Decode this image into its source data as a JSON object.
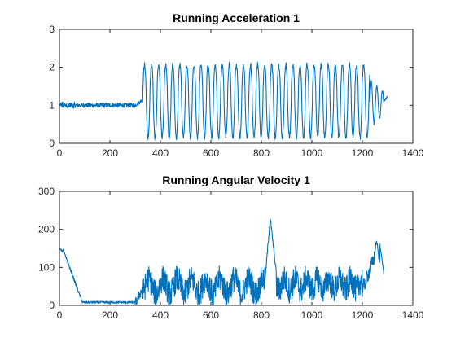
{
  "chart_data": [
    {
      "type": "line",
      "title": "Running Acceleration 1",
      "xlabel": "",
      "ylabel": "",
      "xlim": [
        0,
        1400
      ],
      "ylim": [
        0,
        3
      ],
      "xticks": [
        0,
        200,
        400,
        600,
        800,
        1000,
        1200,
        1400
      ],
      "yticks": [
        0,
        1,
        2,
        3
      ],
      "grid": false,
      "line_color": "#0072BD",
      "segments": [
        {
          "x_start": 0,
          "x_end": 300,
          "pattern": "noisy-flat",
          "level": 1.0,
          "amplitude": 0.08
        },
        {
          "x_start": 300,
          "x_end": 330,
          "pattern": "transition",
          "from": 1.0,
          "to": 1.2
        },
        {
          "x_start": 330,
          "x_end": 1230,
          "pattern": "oscillation",
          "min": 0.15,
          "max": 2.15,
          "period_samples": 28
        },
        {
          "x_start": 1230,
          "x_end": 1300,
          "pattern": "damped",
          "min": 0.6,
          "max": 1.8
        }
      ],
      "series": [
        {
          "values_description": "",
          "n_points": 1300
        }
      ]
    },
    {
      "type": "line",
      "title": "Running Angular Velocity 1",
      "xlabel": "",
      "ylabel": "",
      "xlim": [
        0,
        1400
      ],
      "ylim": [
        0,
        300
      ],
      "xticks": [
        0,
        200,
        400,
        600,
        800,
        1000,
        1200,
        1400
      ],
      "yticks": [
        0,
        100,
        200,
        300
      ],
      "grid": false,
      "line_color": "#0072BD",
      "keypoints": [
        [
          0,
          150
        ],
        [
          10,
          145
        ],
        [
          20,
          135
        ],
        [
          40,
          105
        ],
        [
          60,
          60
        ],
        [
          80,
          20
        ],
        [
          100,
          10
        ],
        [
          150,
          8
        ],
        [
          200,
          8
        ],
        [
          250,
          5
        ],
        [
          290,
          5
        ],
        [
          310,
          20
        ],
        [
          330,
          50
        ],
        [
          820,
          70
        ],
        [
          835,
          230
        ],
        [
          850,
          150
        ],
        [
          870,
          60
        ],
        [
          1190,
          30
        ],
        [
          1210,
          80
        ],
        [
          1250,
          140
        ],
        [
          1265,
          170
        ],
        [
          1280,
          100
        ],
        [
          1285,
          85
        ]
      ],
      "series": [
        {
          "n_points": 1285
        }
      ]
    }
  ]
}
